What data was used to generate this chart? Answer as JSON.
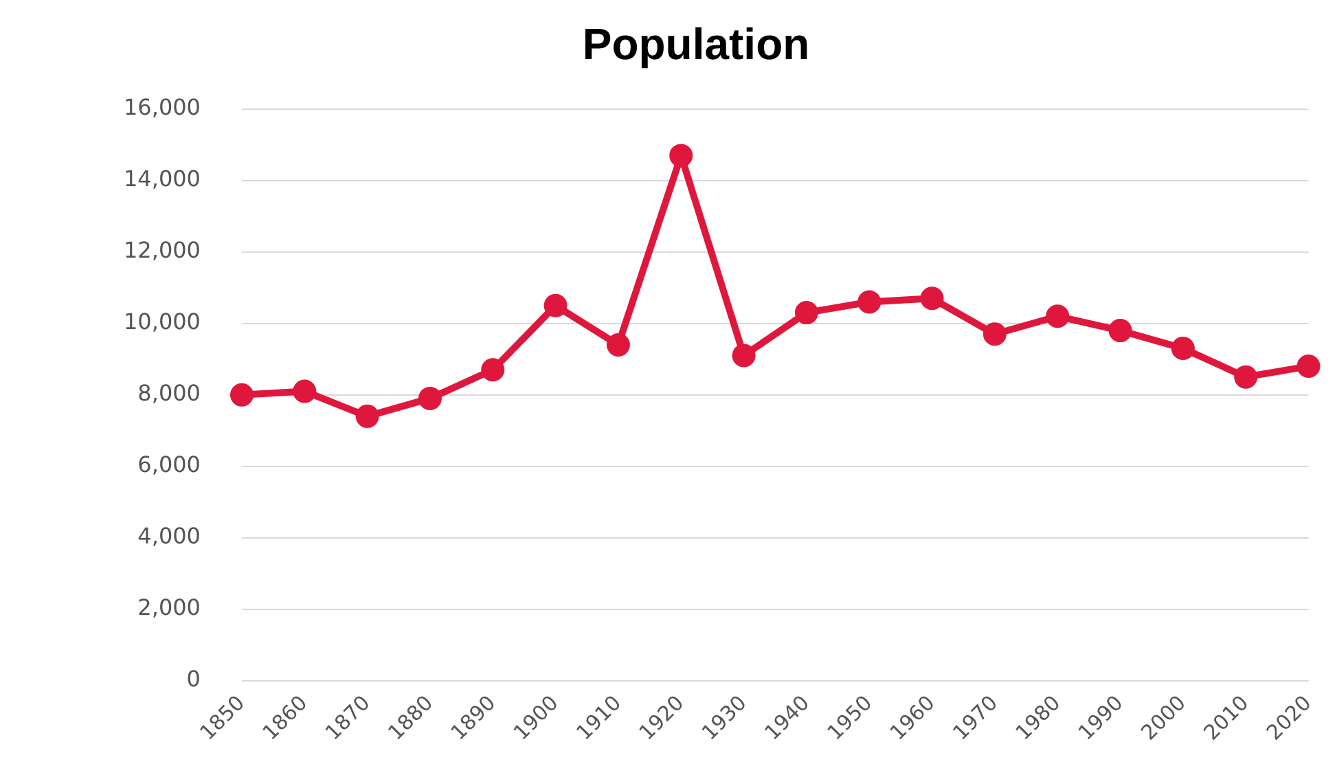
{
  "chart_data": {
    "type": "line",
    "title": "Population",
    "categories": [
      "1850",
      "1860",
      "1870",
      "1880",
      "1890",
      "1900",
      "1910",
      "1920",
      "1930",
      "1940",
      "1950",
      "1960",
      "1970",
      "1980",
      "1990",
      "2000",
      "2010",
      "2020"
    ],
    "series": [
      {
        "color": "#e0173d",
        "values": [
          8000,
          8100,
          7400,
          7900,
          8700,
          10500,
          9400,
          14700,
          9100,
          10300,
          10600,
          10700,
          9700,
          10200,
          9800,
          9300,
          8500,
          8800
        ]
      }
    ],
    "ylim": [
      0,
      16000
    ],
    "yticks": [
      {
        "value": 0,
        "label": "0"
      },
      {
        "value": 2000,
        "label": "2,000"
      },
      {
        "value": 4000,
        "label": "4,000"
      },
      {
        "value": 6000,
        "label": "6,000"
      },
      {
        "value": 8000,
        "label": "8,000"
      },
      {
        "value": 10000,
        "label": "10,000"
      },
      {
        "value": 12000,
        "label": "12,000"
      },
      {
        "value": 14000,
        "label": "14,000"
      },
      {
        "value": 16000,
        "label": "16,000"
      }
    ],
    "grid": "y",
    "marker": "circle",
    "line_style": "solid",
    "legend": false
  }
}
